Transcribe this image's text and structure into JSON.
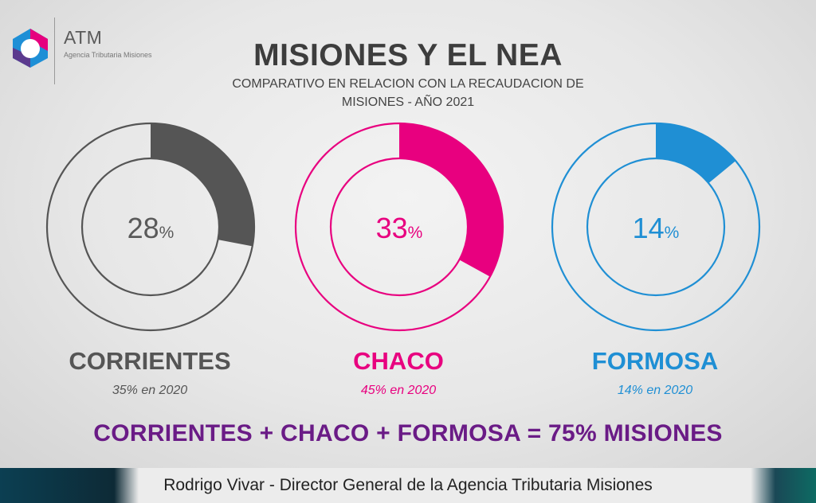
{
  "brand": {
    "name": "ATM",
    "subtitle": "Agencia Tributaria Misiones",
    "colors": [
      "#e6007e",
      "#1e8fd6",
      "#5b3a8e"
    ]
  },
  "slide": {
    "title": "MISIONES Y EL NEA",
    "subtitle": "COMPARATIVO EN RELACION CON LA RECAUDACION DE MISIONES - AÑO 2021",
    "summary": "CORRIENTES + CHACO + FORMOSA = 75% MISIONES"
  },
  "provinces": [
    {
      "name": "CORRIENTES",
      "value": 28,
      "value_text": "28",
      "pct_sign": "%",
      "previous": "35% en 2020",
      "color": "#555555"
    },
    {
      "name": "CHACO",
      "value": 33,
      "value_text": "33",
      "pct_sign": "%",
      "previous": "45% en 2020",
      "color": "#e8007f"
    },
    {
      "name": "FORMOSA",
      "value": 14,
      "value_text": "14",
      "pct_sign": "%",
      "previous": "14% en 2020",
      "color": "#1f8fd4"
    }
  ],
  "footer": {
    "caption": "Rodrigo Vivar - Director General de la Agencia Tributaria Misiones"
  }
}
